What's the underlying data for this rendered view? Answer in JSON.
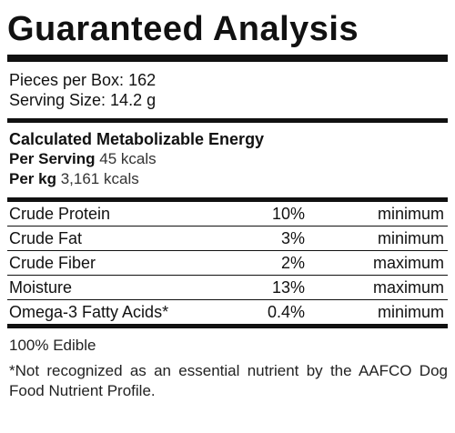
{
  "title": "Guaranteed Analysis",
  "package": {
    "pieces_per_box": "Pieces per Box: 162",
    "serving_size": "Serving Size: 14.2 g"
  },
  "energy": {
    "title": "Calculated Metabolizable Energy",
    "per_serving_label": "Per Serving",
    "per_serving_value": "45 kcals",
    "per_kg_label": "Per kg",
    "per_kg_value": "3,161 kcals"
  },
  "analysis": [
    {
      "name": "Crude Protein",
      "percent": "10%",
      "qualifier": "minimum"
    },
    {
      "name": "Crude Fat",
      "percent": "3%",
      "qualifier": "minimum"
    },
    {
      "name": "Crude Fiber",
      "percent": "2%",
      "qualifier": "maximum"
    },
    {
      "name": "Moisture",
      "percent": "13%",
      "qualifier": "maximum"
    },
    {
      "name": "Omega-3 Fatty Acids*",
      "percent": "0.4%",
      "qualifier": "minimum"
    }
  ],
  "notes": {
    "edible": "100% Edible",
    "footnote": "*Not recognized as an essential nutrient by the AAFCO Dog Food Nutrient Profile."
  }
}
